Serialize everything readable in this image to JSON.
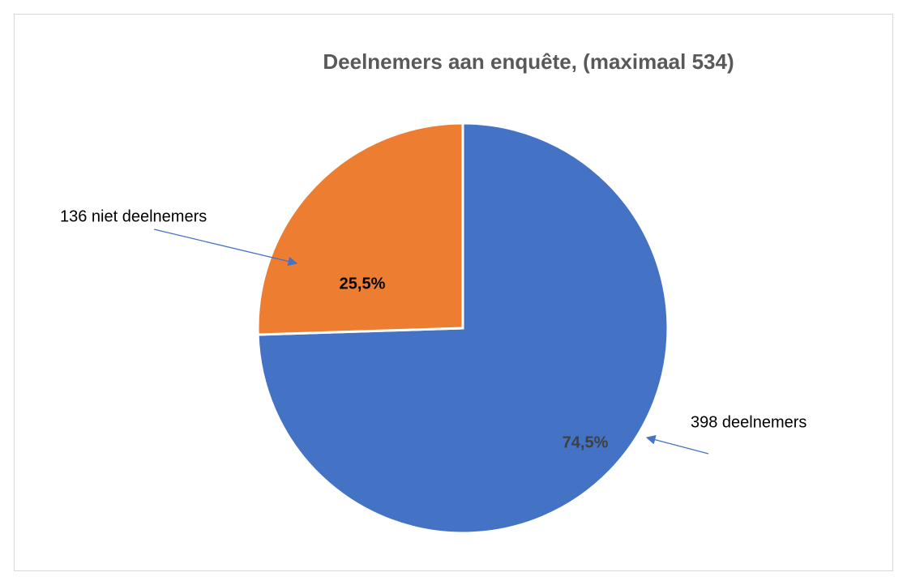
{
  "chart_data": {
    "type": "pie",
    "title": "Deelnemers aan enquête, (maximaal 534)",
    "categories": [
      "398 deelnemers",
      "136 niet deelnemers"
    ],
    "values": [
      74.5,
      25.5
    ],
    "value_labels": [
      "74,5%",
      "25,5%"
    ],
    "colors": [
      "#4472c4",
      "#ed7d31"
    ]
  }
}
